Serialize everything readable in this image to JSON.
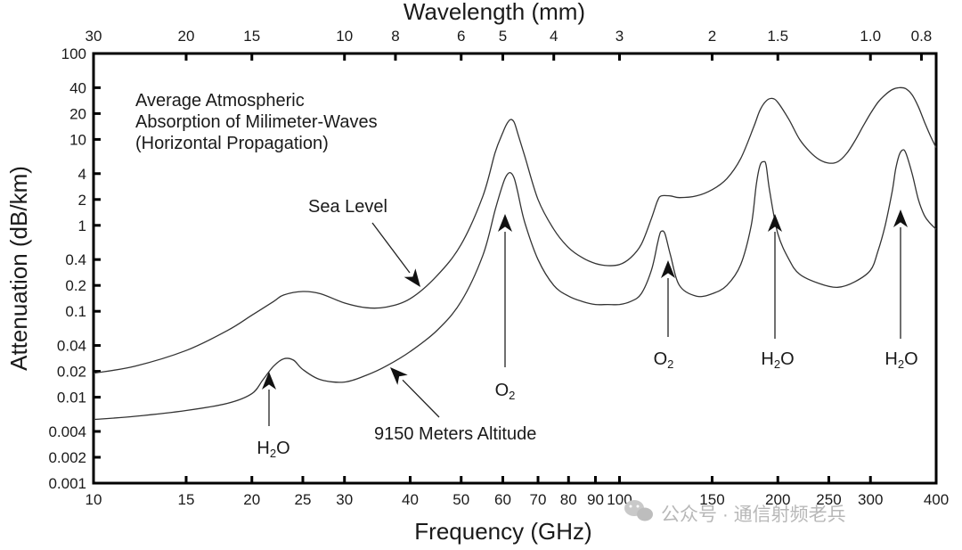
{
  "chart_data": {
    "type": "line",
    "xscale": "log",
    "yscale": "log",
    "xlabel": "Frequency (GHz)",
    "ylabel": "Attenuation (dB/km)",
    "top_axis_label": "Wavelength (mm)",
    "xlim": [
      10,
      400
    ],
    "ylim": [
      0.001,
      100
    ],
    "x_ticks": [
      10,
      15,
      20,
      25,
      30,
      40,
      50,
      60,
      70,
      80,
      90,
      100,
      150,
      200,
      250,
      300,
      400
    ],
    "x_tick_labels": [
      "10",
      "15",
      "20",
      "25",
      "30",
      "40",
      "50",
      "60",
      "70",
      "80",
      "90",
      "100",
      "150",
      "200",
      "250",
      "300",
      "400"
    ],
    "y_ticks": [
      0.001,
      0.002,
      0.004,
      0.01,
      0.02,
      0.04,
      0.1,
      0.2,
      0.4,
      1,
      2,
      4,
      10,
      20,
      40,
      100
    ],
    "y_tick_labels": [
      "0.001",
      "0.002",
      "0.004",
      "0.01",
      "0.02",
      "0.04",
      "0.1",
      "0.2",
      "0.4",
      "1",
      "2",
      "4",
      "10",
      "20",
      "40",
      "100"
    ],
    "top_ticks_mm": [
      30,
      20,
      15,
      10,
      8,
      6,
      5,
      4,
      3,
      2,
      1.5,
      1.0,
      0.8
    ],
    "top_tick_labels": [
      "30",
      "20",
      "15",
      "10",
      "8",
      "6",
      "5",
      "4",
      "3",
      "2",
      "1.5",
      "1.0",
      "0.8"
    ],
    "title_lines": [
      "Average Atmospheric",
      "Absorption of Milimeter-Waves",
      "(Horizontal Propagation)"
    ],
    "series": [
      {
        "name": "Sea Level",
        "x": [
          10,
          12,
          15,
          18,
          20,
          22,
          23,
          25,
          27,
          30,
          33,
          36,
          40,
          45,
          50,
          55,
          58,
          60,
          61,
          62,
          63,
          64,
          66,
          70,
          75,
          80,
          85,
          90,
          95,
          100,
          105,
          110,
          115,
          118,
          120,
          125,
          130,
          140,
          150,
          160,
          170,
          180,
          185,
          190,
          195,
          200,
          210,
          220,
          230,
          240,
          250,
          260,
          270,
          280,
          290,
          300,
          310,
          320,
          330,
          340,
          350,
          360,
          370,
          380,
          390,
          400
        ],
        "values": [
          0.019,
          0.023,
          0.035,
          0.06,
          0.09,
          0.13,
          0.155,
          0.17,
          0.16,
          0.125,
          0.11,
          0.112,
          0.14,
          0.26,
          0.6,
          2.2,
          7,
          12,
          15,
          17,
          16,
          12,
          6.5,
          2,
          0.9,
          0.55,
          0.42,
          0.36,
          0.34,
          0.35,
          0.42,
          0.6,
          1.2,
          1.9,
          2.2,
          2.2,
          2.1,
          2.2,
          2.6,
          3.5,
          6,
          14,
          22,
          28,
          30,
          27,
          17,
          10,
          7.2,
          5.8,
          5.3,
          5.5,
          6.8,
          9.5,
          14,
          20,
          27,
          33,
          38,
          40,
          39,
          33,
          24,
          16,
          11,
          8
        ]
      },
      {
        "name": "9150 Meters Altitude",
        "x": [
          10,
          12,
          15,
          18,
          20,
          21,
          22,
          23,
          24,
          25,
          27,
          30,
          33,
          36,
          40,
          45,
          50,
          55,
          58,
          60,
          61,
          62,
          63,
          64,
          66,
          70,
          75,
          80,
          85,
          90,
          95,
          100,
          105,
          110,
          115,
          118,
          119,
          120,
          122,
          125,
          130,
          140,
          150,
          160,
          170,
          178,
          182,
          185,
          188,
          190,
          193,
          200,
          210,
          220,
          240,
          260,
          280,
          300,
          310,
          320,
          330,
          335,
          340,
          345,
          350,
          360,
          370,
          380,
          390,
          400
        ],
        "values": [
          0.0055,
          0.006,
          0.007,
          0.0085,
          0.011,
          0.016,
          0.023,
          0.028,
          0.027,
          0.021,
          0.016,
          0.015,
          0.018,
          0.023,
          0.034,
          0.06,
          0.13,
          0.45,
          1.5,
          3,
          3.8,
          4.1,
          3.6,
          2.5,
          1.1,
          0.4,
          0.2,
          0.15,
          0.13,
          0.12,
          0.12,
          0.12,
          0.13,
          0.16,
          0.3,
          0.6,
          0.75,
          0.85,
          0.8,
          0.45,
          0.2,
          0.15,
          0.16,
          0.2,
          0.35,
          1,
          3,
          5,
          5.5,
          5,
          2.5,
          0.8,
          0.4,
          0.27,
          0.21,
          0.19,
          0.22,
          0.3,
          0.5,
          1,
          2.5,
          4.5,
          6.5,
          7.5,
          7,
          4,
          2,
          1.3,
          1.05,
          0.9
        ]
      }
    ],
    "annotations": [
      {
        "name": "sea-level",
        "text": "Sea Level"
      },
      {
        "name": "altitude",
        "text": "9150 Meters Altitude"
      },
      {
        "name": "h2o-22",
        "text": "H",
        "sub": "2",
        "suffix": "O"
      },
      {
        "name": "o2-60",
        "text": "O",
        "sub": "2",
        "suffix": ""
      },
      {
        "name": "o2-119",
        "text": "O",
        "sub": "2",
        "suffix": ""
      },
      {
        "name": "h2o-183",
        "text": "H",
        "sub": "2",
        "suffix": "O"
      },
      {
        "name": "h2o-325",
        "text": "H",
        "sub": "2",
        "suffix": "O"
      }
    ]
  },
  "watermark": {
    "icon": "wechat-icon",
    "text": "公众号 · 通信射频老兵"
  }
}
